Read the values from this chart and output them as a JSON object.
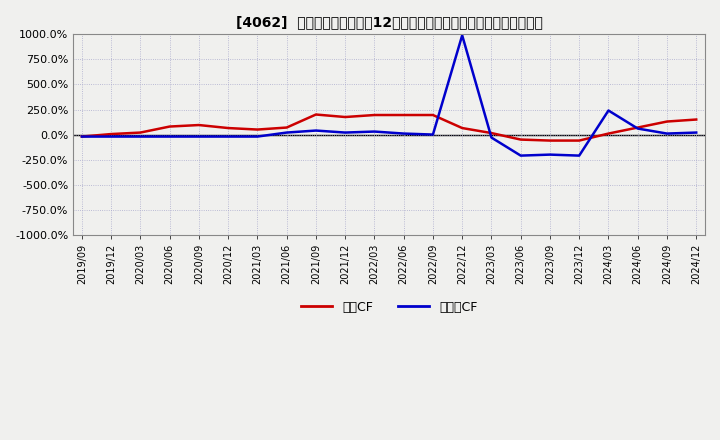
{
  "title": "[4062]  キャッシュフローの12か月移動合計の対前年同期増減率の推移",
  "ylim": [
    -1000,
    1000
  ],
  "yticks": [
    -1000,
    -750,
    -500,
    -250,
    0,
    250,
    500,
    750,
    1000
  ],
  "ytick_labels": [
    "-1000.0%",
    "-750.0%",
    "-500.0%",
    "-250.0%",
    "0.0%",
    "250.0%",
    "500.0%",
    "750.0%",
    "1000.0%"
  ],
  "legend_labels": [
    "営業CF",
    "フリーCF"
  ],
  "legend_colors": [
    "#cc0000",
    "#0000cc"
  ],
  "plot_bg_color": "#f0f0ee",
  "fig_bg_color": "#f0f0ee",
  "grid_color": "#aaaacc",
  "border_color": "#888888",
  "dates": [
    "2019/09",
    "2019/12",
    "2020/03",
    "2020/06",
    "2020/09",
    "2020/12",
    "2021/03",
    "2021/06",
    "2021/09",
    "2021/12",
    "2022/03",
    "2022/06",
    "2022/09",
    "2022/12",
    "2023/03",
    "2023/06",
    "2023/09",
    "2023/12",
    "2024/03",
    "2024/06",
    "2024/09",
    "2024/12"
  ],
  "operating_cf": [
    -20,
    5,
    20,
    80,
    95,
    65,
    50,
    70,
    200,
    175,
    195,
    195,
    195,
    65,
    15,
    -50,
    -60,
    -60,
    10,
    70,
    130,
    150
  ],
  "free_cf": [
    -20,
    -20,
    -20,
    -20,
    -20,
    -20,
    -20,
    20,
    40,
    20,
    30,
    10,
    0,
    990,
    -30,
    -210,
    -200,
    -210,
    240,
    60,
    10,
    20
  ],
  "line_width": 1.8
}
